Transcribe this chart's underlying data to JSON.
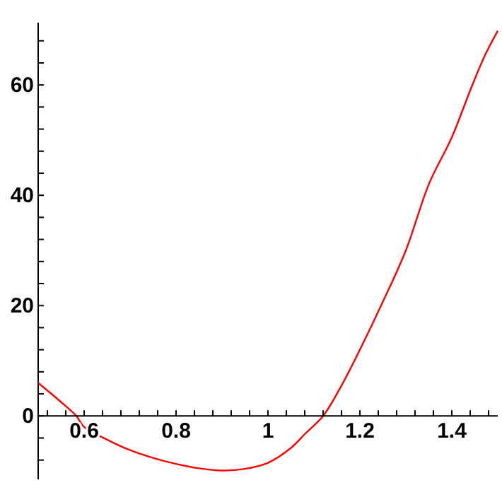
{
  "chart_data": {
    "type": "line",
    "x": [
      0.5,
      0.55,
      0.583,
      0.6,
      0.65,
      0.7,
      0.75,
      0.8,
      0.85,
      0.9,
      0.95,
      1.0,
      1.05,
      1.08,
      1.12,
      1.16,
      1.2,
      1.25,
      1.3,
      1.35,
      1.4,
      1.44,
      1.47,
      1.5
    ],
    "series": [
      {
        "color": "#ff0000",
        "values": [
          6,
          2.5,
          0,
          -2,
          -4.3,
          -6.2,
          -7.6,
          -8.7,
          -9.5,
          -9.9,
          -9.6,
          -8.5,
          -5.8,
          -3.3,
          0,
          5.5,
          12,
          20.7,
          30,
          42,
          50.5,
          59,
          65,
          69.8
        ]
      }
    ],
    "xlim": [
      0.5,
      1.5
    ],
    "ylim": [
      -11.5,
      71.3
    ],
    "xticks": [
      {
        "value": 0.52,
        "label": null
      },
      {
        "value": 0.56,
        "label": null
      },
      {
        "value": 0.6,
        "label": "0.6"
      },
      {
        "value": 0.64,
        "label": null
      },
      {
        "value": 0.68,
        "label": null
      },
      {
        "value": 0.72,
        "label": null
      },
      {
        "value": 0.76,
        "label": null
      },
      {
        "value": 0.8,
        "label": "0.8"
      },
      {
        "value": 0.84,
        "label": null
      },
      {
        "value": 0.88,
        "label": null
      },
      {
        "value": 0.92,
        "label": null
      },
      {
        "value": 0.96,
        "label": null
      },
      {
        "value": 1,
        "label": "1"
      },
      {
        "value": 1.04,
        "label": null
      },
      {
        "value": 1.08,
        "label": null
      },
      {
        "value": 1.12,
        "label": null
      },
      {
        "value": 1.16,
        "label": null
      },
      {
        "value": 1.2,
        "label": "1.2"
      },
      {
        "value": 1.24,
        "label": null
      },
      {
        "value": 1.28,
        "label": null
      },
      {
        "value": 1.32,
        "label": null
      },
      {
        "value": 1.36,
        "label": null
      },
      {
        "value": 1.4,
        "label": "1.4"
      },
      {
        "value": 1.44,
        "label": null
      },
      {
        "value": 1.48,
        "label": null
      }
    ],
    "yticks": [
      {
        "value": -8,
        "label": null
      },
      {
        "value": -4,
        "label": null
      },
      0,
      {
        "value": 4,
        "label": null
      },
      {
        "value": 8,
        "label": null
      },
      {
        "value": 12,
        "label": null
      },
      {
        "value": 16,
        "label": null
      },
      20,
      {
        "value": 24,
        "label": null
      },
      {
        "value": 28,
        "label": null
      },
      {
        "value": 32,
        "label": null
      },
      {
        "value": 36,
        "label": null
      },
      40,
      {
        "value": 44,
        "label": null
      },
      {
        "value": 48,
        "label": null
      },
      {
        "value": 52,
        "label": null
      },
      {
        "value": 56,
        "label": null
      },
      60,
      {
        "value": 64,
        "label": null
      },
      {
        "value": 68,
        "label": null
      }
    ],
    "grid": false,
    "marker": "none",
    "line_style": "solid"
  }
}
